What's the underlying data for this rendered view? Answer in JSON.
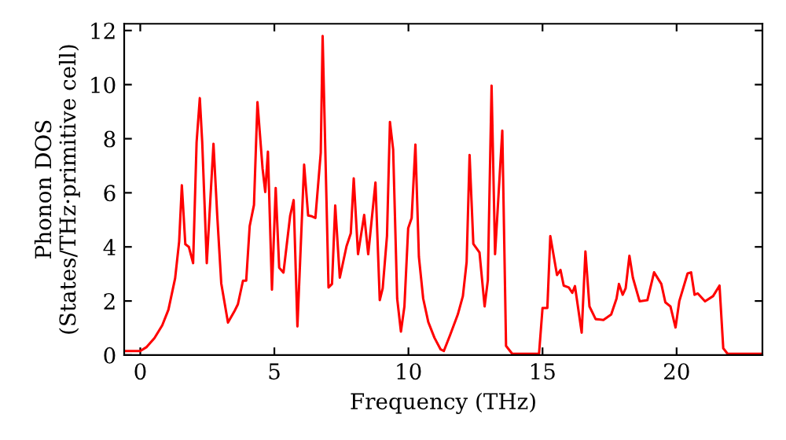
{
  "chart_data": {
    "type": "line",
    "xlabel": "Frequency (THz)",
    "ylabel": "Phonon DOS\n(States/THz·primitive cell)",
    "xlim": [
      -0.6,
      23.2
    ],
    "ylim": [
      0,
      12.25
    ],
    "xticks": [
      0,
      5,
      10,
      15,
      20
    ],
    "yticks": [
      0,
      2,
      4,
      6,
      8,
      10,
      12
    ],
    "grid": false,
    "marker": "none",
    "line_style": "solid",
    "series": [
      {
        "color": "#ff0000",
        "x": [
          -0.55,
          0,
          0.24,
          0.53,
          0.82,
          1.05,
          1.3,
          1.45,
          1.55,
          1.68,
          1.81,
          1.97,
          2.1,
          2.22,
          2.31,
          2.48,
          2.73,
          2.87,
          3.02,
          3.27,
          3.5,
          3.64,
          3.83,
          3.95,
          4.08,
          4.24,
          4.37,
          4.56,
          4.66,
          4.76,
          4.91,
          5.05,
          5.18,
          5.34,
          5.59,
          5.72,
          5.86,
          6.11,
          6.26,
          6.4,
          6.53,
          6.73,
          6.8,
          7.02,
          7.15,
          7.27,
          7.44,
          7.69,
          7.85,
          7.96,
          8.12,
          8.35,
          8.5,
          8.77,
          8.93,
          9.04,
          9.2,
          9.31,
          9.43,
          9.58,
          9.72,
          9.85,
          9.99,
          10.12,
          10.26,
          10.39,
          10.55,
          10.74,
          10.97,
          11.2,
          11.32,
          11.55,
          11.84,
          12.03,
          12.17,
          12.28,
          12.42,
          12.65,
          12.84,
          12.96,
          13.1,
          13.23,
          13.5,
          13.64,
          13.87,
          14.87,
          15.0,
          15.18,
          15.29,
          15.54,
          15.67,
          15.79,
          15.98,
          16.11,
          16.21,
          16.46,
          16.6,
          16.75,
          16.98,
          17.27,
          17.56,
          17.76,
          17.85,
          17.99,
          18.1,
          18.24,
          18.37,
          18.62,
          18.91,
          19.16,
          19.43,
          19.58,
          19.77,
          19.96,
          20.1,
          20.41,
          20.54,
          20.67,
          20.79,
          21.06,
          21.36,
          21.6,
          21.74,
          21.9,
          23.2
        ],
        "values": [
          0.15,
          0.15,
          0.3,
          0.63,
          1.1,
          1.68,
          2.84,
          4.2,
          6.28,
          4.1,
          4.0,
          3.4,
          7.87,
          9.5,
          7.87,
          3.4,
          7.81,
          5.16,
          2.65,
          1.2,
          1.6,
          1.88,
          2.75,
          2.75,
          4.77,
          5.55,
          9.35,
          6.9,
          6.03,
          7.52,
          2.42,
          6.18,
          3.23,
          3.05,
          5.16,
          5.73,
          1.06,
          7.04,
          5.16,
          5.13,
          5.07,
          7.48,
          11.8,
          2.5,
          2.63,
          5.53,
          2.86,
          4.02,
          4.5,
          6.53,
          3.73,
          5.18,
          3.73,
          6.38,
          2.03,
          2.47,
          4.4,
          8.62,
          7.6,
          2.09,
          0.87,
          1.8,
          4.69,
          5.07,
          7.78,
          3.63,
          2.09,
          1.22,
          0.64,
          0.21,
          0.15,
          0.73,
          1.5,
          2.18,
          3.44,
          7.4,
          4.11,
          3.79,
          1.8,
          2.76,
          9.96,
          3.73,
          8.3,
          0.34,
          0.05,
          0.05,
          1.74,
          1.74,
          4.4,
          2.96,
          3.15,
          2.57,
          2.5,
          2.3,
          2.55,
          0.83,
          3.83,
          1.8,
          1.33,
          1.3,
          1.5,
          2.09,
          2.63,
          2.23,
          2.47,
          3.67,
          2.86,
          1.99,
          2.03,
          3.06,
          2.63,
          1.95,
          1.8,
          1.02,
          1.99,
          3.02,
          3.06,
          2.23,
          2.28,
          1.99,
          2.18,
          2.57,
          0.25,
          0.05,
          0.05
        ]
      }
    ]
  }
}
